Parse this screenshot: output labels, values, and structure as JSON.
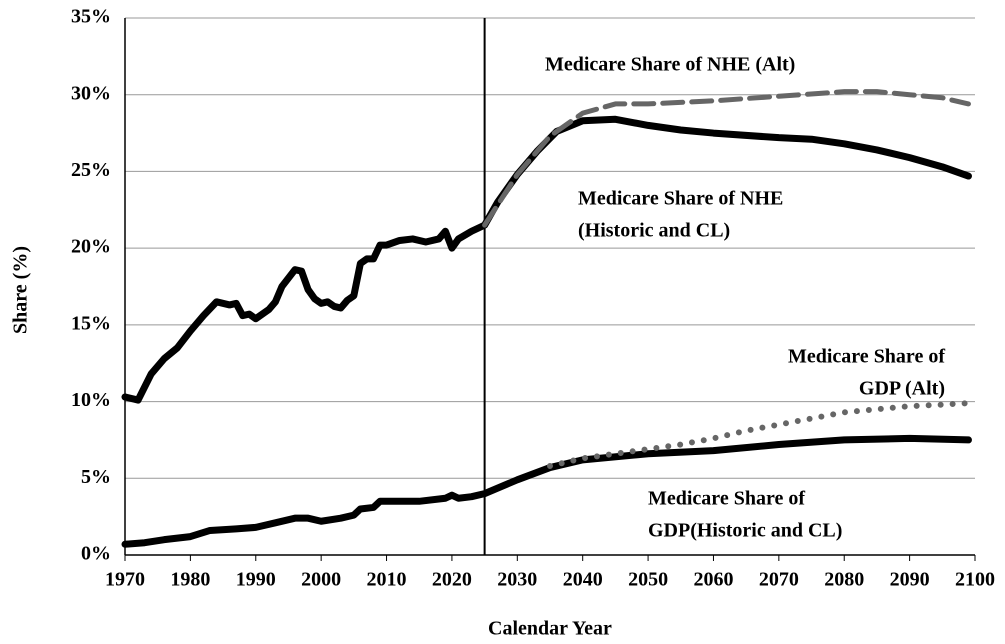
{
  "chart_data": {
    "type": "line",
    "x_label": "Calendar Year",
    "y_label": "Share  (%)",
    "xlim": [
      1970,
      2100
    ],
    "xticks": [
      1970,
      1980,
      1990,
      2000,
      2010,
      2020,
      2030,
      2040,
      2050,
      2060,
      2070,
      2080,
      2090,
      2100
    ],
    "ylim": [
      0,
      35
    ],
    "yticks": [
      {
        "value": 0,
        "label": "0%"
      },
      {
        "value": 5,
        "label": "5%"
      },
      {
        "value": 10,
        "label": "10%"
      },
      {
        "value": 15,
        "label": "15%"
      },
      {
        "value": 20,
        "label": "20%"
      },
      {
        "value": 25,
        "label": "25%"
      },
      {
        "value": 30,
        "label": "30%"
      },
      {
        "value": 35,
        "label": "35%"
      }
    ],
    "grid": true,
    "divider_x": 2025,
    "series": [
      {
        "color": "#000000",
        "style": "solid",
        "x": [
          1970,
          1972,
          1974,
          1976,
          1978,
          1980,
          1982,
          1984,
          1986,
          1987,
          1988,
          1989,
          1990,
          1992,
          1993,
          1994,
          1996,
          1997,
          1998,
          1999,
          2000,
          2001,
          2002,
          2003,
          2004,
          2005,
          2006,
          2007,
          2008,
          2009,
          2010,
          2012,
          2014,
          2016,
          2018,
          2019,
          2020,
          2021,
          2023,
          2025,
          2027,
          2030,
          2033,
          2036,
          2040,
          2045,
          2050,
          2055,
          2060,
          2070,
          2075,
          2080,
          2085,
          2090,
          2095,
          2099
        ],
        "values": [
          10.3,
          10.1,
          11.8,
          12.8,
          13.5,
          14.6,
          15.6,
          16.5,
          16.3,
          16.4,
          15.6,
          15.7,
          15.4,
          16.0,
          16.5,
          17.5,
          18.6,
          18.5,
          17.3,
          16.7,
          16.4,
          16.5,
          16.2,
          16.1,
          16.6,
          16.9,
          19.0,
          19.3,
          19.3,
          20.2,
          20.2,
          20.5,
          20.6,
          20.4,
          20.6,
          21.1,
          20.0,
          20.6,
          21.1,
          21.5,
          23.0,
          24.8,
          26.3,
          27.6,
          28.3,
          28.4,
          28.0,
          27.7,
          27.5,
          27.2,
          27.1,
          26.8,
          26.4,
          25.9,
          25.3,
          24.7
        ]
      },
      {
        "color": "#666666",
        "style": "dashed",
        "x": [
          2025,
          2030,
          2035,
          2040,
          2045,
          2050,
          2060,
          2070,
          2080,
          2085,
          2090,
          2095,
          2099
        ],
        "values": [
          21.5,
          24.8,
          27.3,
          28.8,
          29.4,
          29.4,
          29.6,
          29.9,
          30.2,
          30.2,
          30.0,
          29.8,
          29.4
        ]
      },
      {
        "color": "#000000",
        "style": "solid",
        "x": [
          1970,
          1973,
          1976,
          1980,
          1983,
          1987,
          1990,
          1993,
          1996,
          1998,
          2000,
          2003,
          2005,
          2006,
          2008,
          2009,
          2012,
          2015,
          2019,
          2020,
          2021,
          2023,
          2025,
          2030,
          2035,
          2040,
          2050,
          2060,
          2070,
          2080,
          2090,
          2099
        ],
        "values": [
          0.7,
          0.8,
          1.0,
          1.2,
          1.6,
          1.7,
          1.8,
          2.1,
          2.4,
          2.4,
          2.2,
          2.4,
          2.6,
          3.0,
          3.1,
          3.5,
          3.5,
          3.5,
          3.7,
          3.9,
          3.7,
          3.8,
          4.0,
          4.9,
          5.7,
          6.2,
          6.6,
          6.8,
          7.2,
          7.5,
          7.6,
          7.5
        ]
      },
      {
        "color": "#666666",
        "style": "dotted",
        "x": [
          2035,
          2040,
          2045,
          2050,
          2055,
          2060,
          2065,
          2070,
          2075,
          2080,
          2085,
          2090,
          2095,
          2099
        ],
        "values": [
          5.8,
          6.3,
          6.6,
          6.9,
          7.2,
          7.6,
          8.1,
          8.5,
          8.9,
          9.3,
          9.5,
          9.7,
          9.8,
          9.9
        ]
      }
    ],
    "annotations": [
      [
        "Medicare Share of NHE (Alt)"
      ],
      [
        "Medicare Share of NHE",
        "(Historic and CL)"
      ],
      [
        "Medicare Share of",
        "GDP (Alt)"
      ],
      [
        "Medicare Share of",
        "GDP(Historic and CL)"
      ]
    ]
  }
}
